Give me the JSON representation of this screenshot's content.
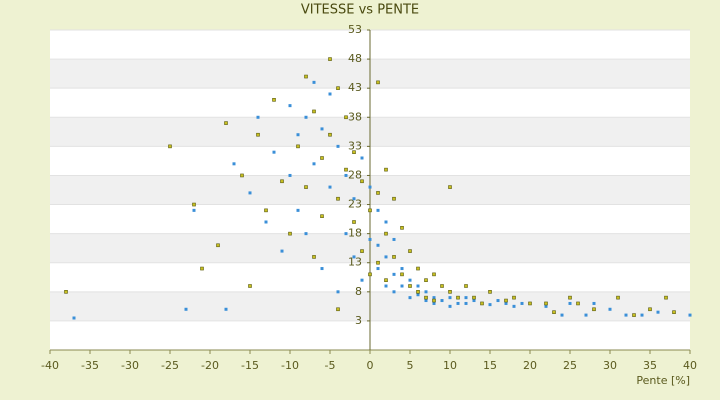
{
  "chart_data": {
    "type": "scatter",
    "title": "VITESSE vs PENTE",
    "x_label": "Pente [%]",
    "xlim": [
      -40,
      40
    ],
    "xticks": [
      -40,
      -35,
      -30,
      -25,
      -20,
      -15,
      -10,
      -5,
      0,
      5,
      10,
      15,
      20,
      25,
      30,
      35,
      40
    ],
    "ylim": [
      -2,
      53
    ],
    "yticks": [
      3,
      8,
      13,
      18,
      23,
      28,
      33,
      38,
      43,
      48,
      53
    ],
    "grid": true,
    "series": [
      {
        "color": "#3a8fd8",
        "x": [
          -37,
          -23,
          -22,
          -18,
          -17,
          -15,
          -14,
          -13,
          -12,
          -11,
          -10,
          -10,
          -9,
          -9,
          -8,
          -8,
          -7,
          -7,
          -6,
          -6,
          -5,
          -5,
          -4,
          -4,
          -3,
          -3,
          -2,
          -2,
          -1,
          -1,
          0,
          0,
          1,
          1,
          1,
          2,
          2,
          2,
          3,
          3,
          3,
          4,
          4,
          5,
          5,
          6,
          6,
          7,
          7,
          8,
          8,
          9,
          10,
          10,
          11,
          12,
          12,
          13,
          14,
          15,
          16,
          17,
          18,
          19,
          20,
          22,
          24,
          25,
          27,
          28,
          30,
          32,
          34,
          36,
          40
        ],
        "values": [
          3.5,
          5,
          22,
          5,
          30,
          25,
          38,
          20,
          32,
          15,
          40,
          28,
          35,
          22,
          38,
          18,
          44,
          30,
          36,
          12,
          42,
          26,
          33,
          8,
          28,
          18,
          24,
          14,
          31,
          10,
          26,
          17,
          22,
          12,
          16,
          20,
          9,
          14,
          11,
          17,
          8,
          12,
          9,
          10,
          7,
          9,
          7.5,
          8,
          6.5,
          7,
          6,
          6.5,
          7,
          5.5,
          6,
          7,
          6,
          6.5,
          6,
          5.8,
          6.5,
          6,
          5.5,
          6,
          6,
          5.5,
          4,
          6,
          4,
          6,
          5,
          4,
          4,
          4.5,
          4
        ]
      },
      {
        "color": "#c8c020",
        "x": [
          -38,
          -25,
          -22,
          -21,
          -19,
          -18,
          -16,
          -15,
          -14,
          -13,
          -12,
          -11,
          -10,
          -9,
          -8,
          -8,
          -7,
          -7,
          -6,
          -6,
          -5,
          -5,
          -4,
          -4,
          -4,
          -3,
          -3,
          -2,
          -2,
          -1,
          -1,
          0,
          0,
          1,
          1,
          1,
          2,
          2,
          2,
          3,
          3,
          4,
          4,
          5,
          5,
          6,
          6,
          7,
          7,
          8,
          8,
          9,
          10,
          10,
          11,
          12,
          13,
          14,
          15,
          17,
          18,
          20,
          22,
          23,
          25,
          26,
          28,
          31,
          33,
          35,
          37,
          38
        ],
        "values": [
          8,
          33,
          23,
          12,
          16,
          37,
          28,
          9,
          35,
          22,
          41,
          27,
          18,
          33,
          45,
          26,
          39,
          14,
          31,
          21,
          48,
          35,
          43,
          24,
          5,
          38,
          29,
          32,
          20,
          27,
          15,
          22,
          11,
          44,
          25,
          13,
          29,
          18,
          10,
          24,
          14,
          19,
          11,
          15,
          9,
          12,
          8,
          10,
          7,
          11,
          6.5,
          9,
          8,
          26,
          7,
          9,
          7,
          6,
          8,
          6.5,
          7,
          6,
          6,
          4.5,
          7,
          6,
          5,
          7,
          4,
          5,
          7,
          4.5
        ]
      }
    ]
  }
}
